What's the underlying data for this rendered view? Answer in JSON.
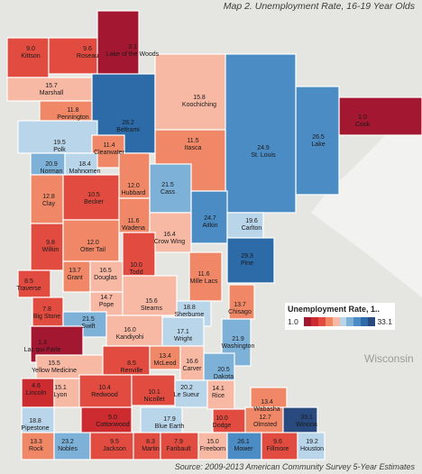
{
  "title": "Map 2. Unemployment Rate, 16-19 Year Olds",
  "source": "Source: 2009-2013 American Community Survey 5-Year Estimates",
  "legend": {
    "title": "Unemployment Rate, 1..",
    "min": "1.0",
    "max": "33.1",
    "palette": [
      "#a41730",
      "#cc2b30",
      "#e24c40",
      "#f08868",
      "#f7b8a4",
      "#b9d5ea",
      "#7eb1d8",
      "#4b8cc4",
      "#2c6aa8",
      "#294a7e"
    ]
  },
  "labels": {
    "state_wi": "Wisconsin"
  },
  "chart_data": {
    "type": "map",
    "title": "Map 2. Unemployment Rate, 16-19 Year Olds",
    "value_range": [
      1.0,
      33.1
    ],
    "counties": [
      {
        "name": "Kittson",
        "value": 9.0
      },
      {
        "name": "Roseau",
        "value": 9.6
      },
      {
        "name": "Lake of the Woods",
        "value": 3.1
      },
      {
        "name": "Marshall",
        "value": 15.7
      },
      {
        "name": "Pennington",
        "value": 11.8
      },
      {
        "name": "Beltrami",
        "value": 28.2
      },
      {
        "name": "Koochiching",
        "value": 15.8
      },
      {
        "name": "Cook",
        "value": 1.0
      },
      {
        "name": "Lake",
        "value": 26.5
      },
      {
        "name": "St. Louis",
        "value": 24.9
      },
      {
        "name": "Polk",
        "value": 19.5
      },
      {
        "name": "Clearwater",
        "value": 11.4
      },
      {
        "name": "Norman",
        "value": 20.9
      },
      {
        "name": "Mahnomen",
        "value": 18.4
      },
      {
        "name": "Itasca",
        "value": 11.5
      },
      {
        "name": "Hubbard",
        "value": 12.0
      },
      {
        "name": "Cass",
        "value": 21.5
      },
      {
        "name": "Clay",
        "value": 12.8
      },
      {
        "name": "Becker",
        "value": 10.5
      },
      {
        "name": "Wadena",
        "value": 11.6
      },
      {
        "name": "Aitkin",
        "value": 24.7
      },
      {
        "name": "Carlton",
        "value": 19.6
      },
      {
        "name": "Crow Wing",
        "value": 16.4
      },
      {
        "name": "Wilkin",
        "value": 9.8
      },
      {
        "name": "Otter Tail",
        "value": 12.0
      },
      {
        "name": "Pine",
        "value": 29.3
      },
      {
        "name": "Grant",
        "value": 13.7
      },
      {
        "name": "Douglas",
        "value": 16.5
      },
      {
        "name": "Todd",
        "value": 10.0
      },
      {
        "name": "Mille Lacs",
        "value": 11.6
      },
      {
        "name": "Traverse",
        "value": 8.5
      },
      {
        "name": "Pope",
        "value": 14.7
      },
      {
        "name": "Stearns",
        "value": 15.6
      },
      {
        "name": "Chisago",
        "value": 13.7
      },
      {
        "name": "Big Stone",
        "value": 7.8
      },
      {
        "name": "Swift",
        "value": 21.5
      },
      {
        "name": "Sherburne",
        "value": 18.8
      },
      {
        "name": "Kandiyohi",
        "value": 16.0
      },
      {
        "name": "Wright",
        "value": 17.1
      },
      {
        "name": "Lac qui Parle",
        "value": 1.3
      },
      {
        "name": "Washington",
        "value": 21.9
      },
      {
        "name": "Yellow Medicine",
        "value": 15.5
      },
      {
        "name": "Renville",
        "value": 8.5
      },
      {
        "name": "McLeod",
        "value": 13.4
      },
      {
        "name": "Carver",
        "value": 16.6
      },
      {
        "name": "Dakota",
        "value": 20.5
      },
      {
        "name": "Lincoln",
        "value": 4.6
      },
      {
        "name": "Lyon",
        "value": 15.1
      },
      {
        "name": "Redwood",
        "value": 10.4
      },
      {
        "name": "Nicollet",
        "value": 10.1
      },
      {
        "name": "Le Sueur",
        "value": 20.2
      },
      {
        "name": "Rice",
        "value": 14.1
      },
      {
        "name": "Wabasha",
        "value": 13.4
      },
      {
        "name": "Pipestone",
        "value": 18.8
      },
      {
        "name": "Cottonwood",
        "value": 5.0
      },
      {
        "name": "Blue Earth",
        "value": 17.9
      },
      {
        "name": "Dodge",
        "value": 10.0
      },
      {
        "name": "Olmsted",
        "value": 12.7
      },
      {
        "name": "Winona",
        "value": 33.1
      },
      {
        "name": "Rock",
        "value": 13.3
      },
      {
        "name": "Nobles",
        "value": 23.2
      },
      {
        "name": "Jackson",
        "value": 9.5
      },
      {
        "name": "Martin",
        "value": 8.3
      },
      {
        "name": "Faribault",
        "value": 7.9
      },
      {
        "name": "Freeborn",
        "value": 15.0
      },
      {
        "name": "Mower",
        "value": 26.1
      },
      {
        "name": "Fillmore",
        "value": 9.6
      },
      {
        "name": "Houston",
        "value": 19.2
      }
    ]
  }
}
